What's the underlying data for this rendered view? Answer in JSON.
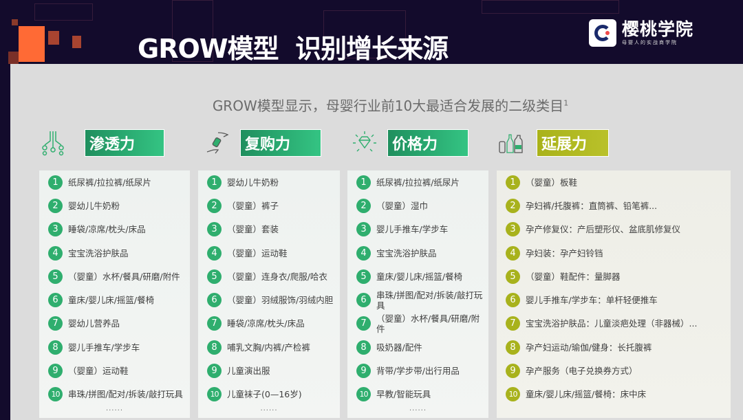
{
  "header": {
    "title": "GROW模型  识别增长来源"
  },
  "logo": {
    "name": "樱桃学院",
    "tagline": "母婴人的实战商学院"
  },
  "subtitle": "GROW模型显示，母婴行业前10大最适合发展的二级类目",
  "subtitle_footnote": "1",
  "colors": {
    "green": "#2fae6e",
    "olive": "#a8b21c",
    "background": "#130b2c",
    "accent_orange": "#ff6a35"
  },
  "columns": [
    {
      "label": "渗透力",
      "icon": "network-nodes-icon",
      "more": "......",
      "items": [
        "纸尿裤/拉拉裤/纸尿片",
        "婴幼儿牛奶粉",
        "睡袋/凉席/枕头/床品",
        "宝宝洗浴护肤品",
        "（婴童）水杯/餐具/研磨/附件",
        "童床/婴儿床/摇篮/餐椅",
        "婴幼儿营养品",
        "婴儿手推车/学步车",
        "（婴童）运动鞋",
        "串珠/拼图/配对/拆装/敲打玩具"
      ]
    },
    {
      "label": "复购力",
      "icon": "hand-money-icon",
      "more": "......",
      "items": [
        "婴幼儿牛奶粉",
        "（婴童）裤子",
        "（婴童）套装",
        "（婴童）运动鞋",
        "（婴童）连身衣/爬服/哈衣",
        "（婴童）羽绒服饰/羽绒内胆",
        "睡袋/凉席/枕头/床品",
        "哺乳文胸/内裤/产检裤",
        "儿童演出服",
        "儿童袜子(0—16岁)"
      ]
    },
    {
      "label": "价格力",
      "icon": "diamond-icon",
      "more": "......",
      "items": [
        "纸尿裤/拉拉裤/纸尿片",
        "（婴童）湿巾",
        "婴儿手推车/学步车",
        "宝宝洗浴护肤品",
        "童床/婴儿床/摇篮/餐椅",
        "串珠/拼图/配对/拆装/敲打玩具",
        "（婴童）水杯/餐具/研磨/附件",
        "吸奶器/配件",
        "背带/学步带/出行用品",
        "早教/智能玩具"
      ]
    },
    {
      "label": "延展力",
      "icon": "bottles-icon",
      "items": [
        "（婴童）板鞋",
        "孕妇裤/托腹裤：直筒裤、铅笔裤...",
        "孕产修复仪：产后塑形仪、盆底肌修复仪",
        "孕妇装：孕产妇铃铛",
        "（婴童）鞋配件：量脚器",
        "婴儿手推车/学步车：单杆轻便推车",
        "宝宝洗浴护肤品：儿童淡疤处理（非器械）...",
        "孕产妇运动/瑜伽/健身：长托腹裤",
        "孕产服务（电子兑换券方式）",
        "童床/婴儿床/摇篮/餐椅：床中床"
      ]
    }
  ]
}
